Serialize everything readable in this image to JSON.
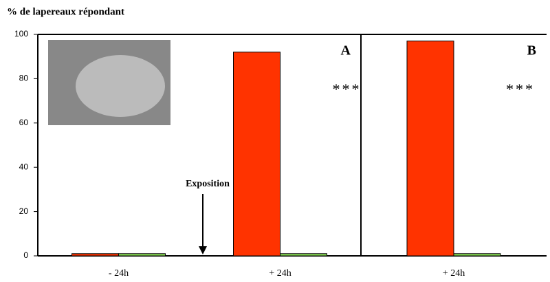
{
  "chart_data": [
    {
      "type": "bar",
      "ylabel": "% de lapereaux répondant",
      "panel_label": "A",
      "categories": [
        "- 24h",
        "+ 24h"
      ],
      "series": [
        {
          "color": "#ff3300",
          "values": [
            1,
            92
          ]
        },
        {
          "color": "#88dd55",
          "values": [
            1,
            1
          ]
        }
      ],
      "ylim": [
        0,
        100
      ],
      "yticks": [
        0,
        20,
        40,
        60,
        80,
        100
      ],
      "annotations": [
        "***",
        "Exposition"
      ]
    },
    {
      "type": "bar",
      "panel_label": "B",
      "categories": [
        "+ 24h"
      ],
      "series": [
        {
          "color": "#ff3300",
          "values": [
            97
          ]
        },
        {
          "color": "#88dd55",
          "values": [
            1
          ]
        }
      ],
      "ylim": [
        0,
        100
      ],
      "annotations": [
        "***"
      ]
    }
  ]
}
